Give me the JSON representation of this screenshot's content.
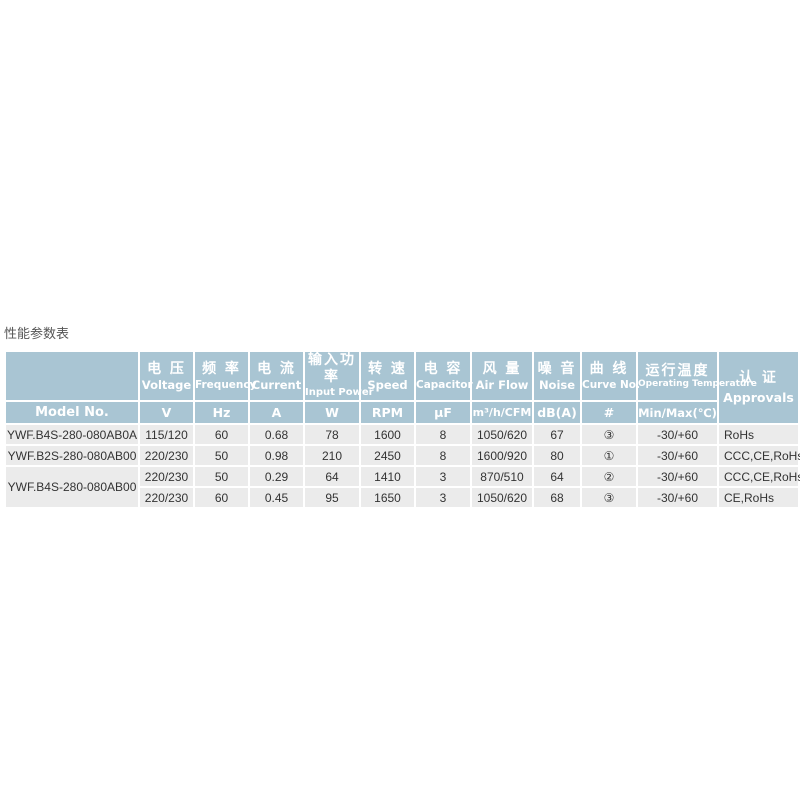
{
  "title": "性能参数表",
  "columns": [
    {
      "cn": "",
      "en": "",
      "unit": "Model No."
    },
    {
      "cn": "电 压",
      "en": "Voltage",
      "unit": "V"
    },
    {
      "cn": "频 率",
      "en": "Frequency",
      "unit": "Hz"
    },
    {
      "cn": "电 流",
      "en": "Current",
      "unit": "A"
    },
    {
      "cn": "输入功率",
      "en": "Input Power",
      "unit": "W"
    },
    {
      "cn": "转 速",
      "en": "Speed",
      "unit": "RPM"
    },
    {
      "cn": "电 容",
      "en": "Capacitor",
      "unit": "µF"
    },
    {
      "cn": "风 量",
      "en": "Air Flow",
      "unit": "m³/h/CFM"
    },
    {
      "cn": "噪 音",
      "en": "Noise",
      "unit": "dB(A)"
    },
    {
      "cn": "曲 线",
      "en": "Curve No.",
      "unit": "#"
    },
    {
      "cn": "运行温度",
      "en": "Operating Temperature",
      "unit": "Min/Max(℃)"
    },
    {
      "cn": "认 证",
      "en": "Approvals",
      "unit": ""
    }
  ],
  "rows": [
    {
      "model": "YWF.B4S-280-080AB0A",
      "values": [
        "115/120",
        "60",
        "0.68",
        "78",
        "1600",
        "8",
        "1050/620",
        "67",
        "③",
        "-30/+60",
        "RoHs"
      ]
    },
    {
      "model": "YWF.B2S-280-080AB00",
      "values": [
        "220/230",
        "50",
        "0.98",
        "210",
        "2450",
        "8",
        "1600/920",
        "80",
        "①",
        "-30/+60",
        "CCC,CE,RoHs"
      ]
    },
    {
      "model": "YWF.B4S-280-080AB00",
      "values": [
        "220/230",
        "50",
        "0.29",
        "64",
        "1410",
        "3",
        "870/510",
        "64",
        "②",
        "-30/+60",
        "CCC,CE,RoHs"
      ]
    },
    {
      "model": "",
      "values": [
        "220/230",
        "60",
        "0.45",
        "95",
        "1650",
        "3",
        "1050/620",
        "68",
        "③",
        "-30/+60",
        "CE,RoHs"
      ]
    }
  ]
}
